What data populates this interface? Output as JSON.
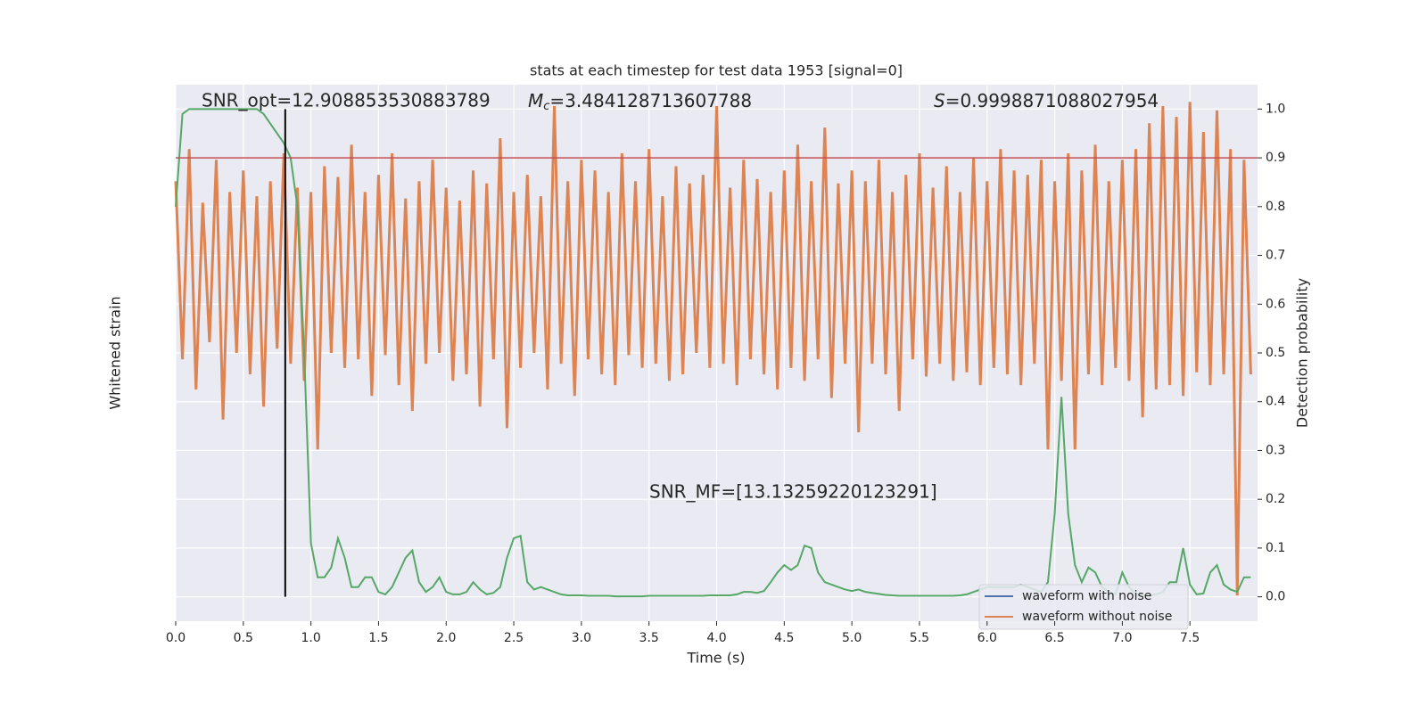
{
  "chart_data": {
    "type": "line",
    "title": "stats at each timestep for test data 1953 [signal=0]",
    "x_label": "Time (s)",
    "y_label": "Whitened strain",
    "y2_label": "Detection probability",
    "xlim": [
      0,
      8
    ],
    "xticks": [
      {
        "value": 0,
        "label": "0.0"
      },
      {
        "value": 0.5,
        "label": "0.5"
      },
      {
        "value": 1,
        "label": "1.0"
      },
      {
        "value": 1.5,
        "label": "1.5"
      },
      {
        "value": 2,
        "label": "2.0"
      },
      {
        "value": 2.5,
        "label": "2.5"
      },
      {
        "value": 3,
        "label": "3.0"
      },
      {
        "value": 3.5,
        "label": "3.5"
      },
      {
        "value": 4,
        "label": "4.0"
      },
      {
        "value": 4.5,
        "label": "4.5"
      },
      {
        "value": 5,
        "label": "5.0"
      },
      {
        "value": 5.5,
        "label": "5.5"
      },
      {
        "value": 6,
        "label": "6.0"
      },
      {
        "value": 6.5,
        "label": "6.5"
      },
      {
        "value": 7,
        "label": "7.0"
      },
      {
        "value": 7.5,
        "label": "7.5"
      }
    ],
    "ylim": [
      -1.6,
      0.9
    ],
    "y2lim": [
      -0.05,
      1.05
    ],
    "y2ticks": [
      {
        "value": 0,
        "label": "0.0"
      },
      {
        "value": 0.1,
        "label": "0.1"
      },
      {
        "value": 0.2,
        "label": "0.2"
      },
      {
        "value": 0.3,
        "label": "0.3"
      },
      {
        "value": 0.4,
        "label": "0.4"
      },
      {
        "value": 0.5,
        "label": "0.5"
      },
      {
        "value": 0.6,
        "label": "0.6"
      },
      {
        "value": 0.7,
        "label": "0.7"
      },
      {
        "value": 0.8,
        "label": "0.8"
      },
      {
        "value": 0.9,
        "label": "0.9"
      },
      {
        "value": 1,
        "label": "1.0"
      }
    ],
    "grid": true,
    "legend": "lower right",
    "x": [
      0,
      0.05,
      0.1,
      0.15,
      0.2,
      0.25,
      0.3,
      0.35,
      0.4,
      0.45,
      0.5,
      0.55,
      0.6,
      0.65,
      0.7,
      0.75,
      0.8,
      0.85,
      0.9,
      0.95,
      1,
      1.05,
      1.1,
      1.15,
      1.2,
      1.25,
      1.3,
      1.35,
      1.4,
      1.45,
      1.5,
      1.55,
      1.6,
      1.65,
      1.7,
      1.75,
      1.8,
      1.85,
      1.9,
      1.95,
      2,
      2.05,
      2.1,
      2.15,
      2.2,
      2.25,
      2.3,
      2.35,
      2.4,
      2.45,
      2.5,
      2.55,
      2.6,
      2.65,
      2.7,
      2.75,
      2.8,
      2.85,
      2.9,
      2.95,
      3,
      3.05,
      3.1,
      3.15,
      3.2,
      3.25,
      3.3,
      3.35,
      3.4,
      3.45,
      3.5,
      3.55,
      3.6,
      3.65,
      3.7,
      3.75,
      3.8,
      3.85,
      3.9,
      3.95,
      4,
      4.05,
      4.1,
      4.15,
      4.2,
      4.25,
      4.3,
      4.35,
      4.4,
      4.45,
      4.5,
      4.55,
      4.6,
      4.65,
      4.7,
      4.75,
      4.8,
      4.85,
      4.9,
      4.95,
      5,
      5.05,
      5.1,
      5.15,
      5.2,
      5.25,
      5.3,
      5.35,
      5.4,
      5.45,
      5.5,
      5.55,
      5.6,
      5.65,
      5.7,
      5.75,
      5.8,
      5.85,
      5.9,
      5.95,
      6,
      6.05,
      6.1,
      6.15,
      6.2,
      6.25,
      6.3,
      6.35,
      6.4,
      6.45,
      6.5,
      6.55,
      6.6,
      6.65,
      6.7,
      6.75,
      6.8,
      6.85,
      6.9,
      6.95,
      7,
      7.05,
      7.1,
      7.15,
      7.2,
      7.25,
      7.3,
      7.35,
      7.4,
      7.45,
      7.5,
      7.55,
      7.6,
      7.65,
      7.7,
      7.75,
      7.8,
      7.85,
      7.9,
      7.95
    ],
    "series": [
      {
        "name": "waveform with noise",
        "color": "#4c72b0"
      },
      {
        "name": "waveform without noise",
        "color": "#dd8452",
        "values": [
          0.45,
          -0.38,
          0.6,
          -0.52,
          0.35,
          -0.3,
          0.55,
          -0.66,
          0.4,
          -0.35,
          0.5,
          -0.45,
          0.38,
          -0.6,
          0.45,
          -0.33,
          0.58,
          -0.4,
          0.42,
          -0.48,
          0.4,
          -0.8,
          0.52,
          -0.35,
          0.47,
          -0.42,
          0.62,
          -0.38,
          0.4,
          -0.55,
          0.48,
          -0.36,
          0.58,
          -0.5,
          0.37,
          -0.62,
          0.45,
          -0.4,
          0.55,
          -0.35,
          0.42,
          -0.48,
          0.36,
          -0.45,
          0.5,
          -0.6,
          0.44,
          -0.38,
          0.65,
          -0.7,
          0.4,
          -0.42,
          0.48,
          -0.35,
          0.38,
          -0.52,
          0.8,
          -0.4,
          0.45,
          -0.55,
          0.55,
          -0.38,
          0.5,
          -0.45,
          0.4,
          -0.5,
          0.58,
          -0.36,
          0.45,
          -0.42,
          0.6,
          -0.4,
          0.38,
          -0.48,
          0.52,
          -0.45,
          0.44,
          -0.35,
          0.48,
          -0.42,
          0.8,
          -0.4,
          0.42,
          -0.5,
          0.55,
          -0.38,
          0.46,
          -0.45,
          0.4,
          -0.52,
          0.5,
          -0.42,
          0.62,
          -0.48,
          0.45,
          -0.38,
          0.7,
          -0.56,
          0.44,
          -0.4,
          0.5,
          -0.72,
          0.45,
          -0.4,
          0.55,
          -0.45,
          0.4,
          -0.62,
          0.48,
          -0.38,
          0.58,
          -0.46,
          0.42,
          -0.4,
          0.52,
          -0.48,
          0.4,
          -0.44,
          0.56,
          -0.5,
          0.45,
          -0.42,
          0.6,
          -0.45,
          0.5,
          -0.5,
          0.48,
          -0.4,
          0.55,
          -0.8,
          0.45,
          -0.48,
          0.58,
          -0.8,
          0.5,
          -0.45,
          0.62,
          -0.5,
          0.45,
          -0.42,
          0.55,
          -0.48,
          0.6,
          -0.65,
          0.72,
          -0.52,
          0.8,
          -0.5,
          0.75,
          -0.55,
          0.82,
          -0.44,
          0.68,
          -0.5,
          0.78,
          -0.45,
          0.6,
          -1.48,
          0.55,
          -0.45
        ]
      },
      {
        "axis": "y2",
        "color": "#55a868",
        "values": [
          0.8,
          0.99,
          1.0,
          1.0,
          1.0,
          1.0,
          1.0,
          1.0,
          1.0,
          1.0,
          1.0,
          1.0,
          1.0,
          0.99,
          0.97,
          0.95,
          0.93,
          0.9,
          0.8,
          0.5,
          0.11,
          0.04,
          0.04,
          0.06,
          0.12,
          0.08,
          0.02,
          0.02,
          0.04,
          0.04,
          0.01,
          0.005,
          0.02,
          0.05,
          0.08,
          0.095,
          0.03,
          0.01,
          0.02,
          0.04,
          0.01,
          0.005,
          0.005,
          0.01,
          0.03,
          0.015,
          0.005,
          0.008,
          0.02,
          0.08,
          0.12,
          0.125,
          0.03,
          0.015,
          0.02,
          0.015,
          0.01,
          0.005,
          0.003,
          0.003,
          0.003,
          0.002,
          0.002,
          0.002,
          0.002,
          0.001,
          0.001,
          0.001,
          0.001,
          0.001,
          0.002,
          0.002,
          0.002,
          0.002,
          0.002,
          0.002,
          0.002,
          0.002,
          0.002,
          0.003,
          0.003,
          0.003,
          0.003,
          0.005,
          0.01,
          0.01,
          0.008,
          0.012,
          0.03,
          0.05,
          0.065,
          0.055,
          0.065,
          0.105,
          0.1,
          0.05,
          0.03,
          0.025,
          0.02,
          0.015,
          0.012,
          0.015,
          0.01,
          0.008,
          0.006,
          0.004,
          0.003,
          0.002,
          0.002,
          0.002,
          0.002,
          0.002,
          0.002,
          0.002,
          0.002,
          0.002,
          0.003,
          0.005,
          0.01,
          0.015,
          0.02,
          0.02,
          0.02,
          0.02,
          0.02,
          0.025,
          0.02,
          0.015,
          0.01,
          0.03,
          0.17,
          0.41,
          0.17,
          0.065,
          0.03,
          0.06,
          0.05,
          0.02,
          0.01,
          0.005,
          0.05,
          0.02,
          0.005,
          0.003,
          0.003,
          0.005,
          0.01,
          0.03,
          0.03,
          0.1,
          0.025,
          0.005,
          0.007,
          0.05,
          0.065,
          0.025,
          0.015,
          0.01,
          0.04,
          0.04
        ]
      }
    ],
    "hlines": [
      {
        "axis": "y2",
        "value": 0.9,
        "color": "#c44e52"
      }
    ],
    "vlines": [
      {
        "value": 0.81,
        "color": "#000000"
      }
    ],
    "annotations": {
      "snr_opt": "SNR_opt=12.908853530883789",
      "chirp_mass": {
        "symbol": "M",
        "subscript": "c",
        "text": "=3.484128713607788"
      },
      "s": {
        "symbol": "S",
        "text": "=0.9998871088027954"
      },
      "snr_mf": "SNR_MF=[13.13259220123291]"
    }
  }
}
